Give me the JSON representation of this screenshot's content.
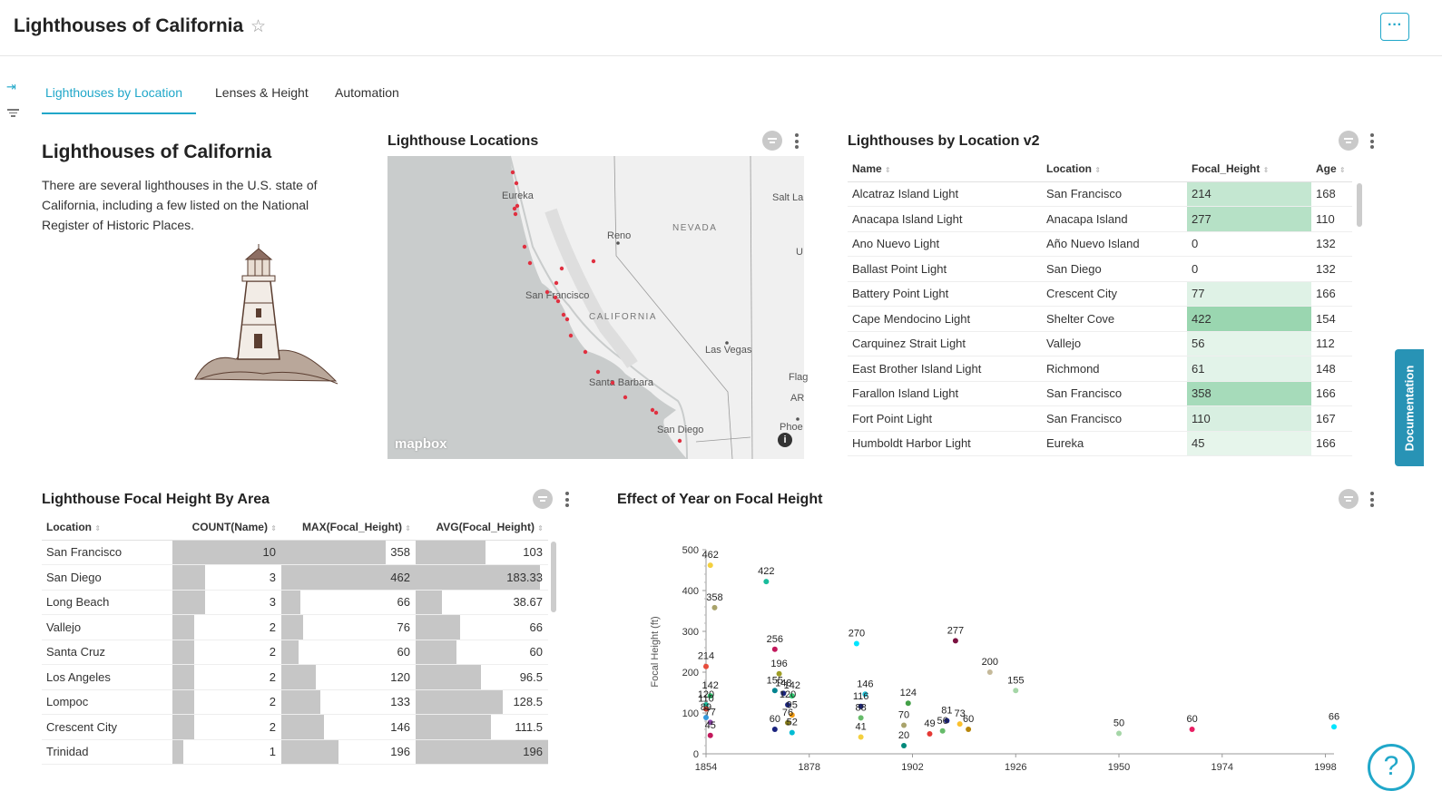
{
  "header": {
    "title": "Lighthouses of California",
    "more_label": "···"
  },
  "tabs": [
    {
      "label": "Lighthouses by Location",
      "active": true
    },
    {
      "label": "Lenses & Height",
      "active": false
    },
    {
      "label": "Automation",
      "active": false
    }
  ],
  "markdown": {
    "title": "Lighthouses of California",
    "text": "There are several lighthouses in the U.S. state of California, including a few listed on the National Register of Historic Places."
  },
  "map": {
    "title": "Lighthouse Locations",
    "labels": [
      "Eureka",
      "Reno",
      "NEVADA",
      "San Francisco",
      "CALIFORNIA",
      "Las Vegas",
      "Santa Barbara",
      "San Diego",
      "Salt La",
      "U",
      "Flag",
      "AR",
      "Phoe"
    ],
    "logo": "mapbox",
    "info": "i"
  },
  "location_table": {
    "title": "Lighthouses by Location v2",
    "columns": [
      "Name",
      "Location",
      "Focal_Height",
      "Age"
    ],
    "rows": [
      {
        "name": "Alcatraz Island Light",
        "location": "San Francisco",
        "focal_height": "214",
        "age": "168"
      },
      {
        "name": "Anacapa Island Light",
        "location": "Anacapa Island",
        "focal_height": "277",
        "age": "110"
      },
      {
        "name": "Ano Nuevo Light",
        "location": "Año Nuevo Island",
        "focal_height": "0",
        "age": "132"
      },
      {
        "name": "Ballast Point Light",
        "location": "San Diego",
        "focal_height": "0",
        "age": "132"
      },
      {
        "name": "Battery Point Light",
        "location": "Crescent City",
        "focal_height": "77",
        "age": "166"
      },
      {
        "name": "Cape Mendocino Light",
        "location": "Shelter Cove",
        "focal_height": "422",
        "age": "154"
      },
      {
        "name": "Carquinez Strait Light",
        "location": "Vallejo",
        "focal_height": "56",
        "age": "112"
      },
      {
        "name": "East Brother Island Light",
        "location": "Richmond",
        "focal_height": "61",
        "age": "148"
      },
      {
        "name": "Farallon Island Light",
        "location": "San Francisco",
        "focal_height": "358",
        "age": "166"
      },
      {
        "name": "Fort Point Light",
        "location": "San Francisco",
        "focal_height": "110",
        "age": "167"
      },
      {
        "name": "Humboldt Harbor Light",
        "location": "Eureka",
        "focal_height": "45",
        "age": "166"
      }
    ]
  },
  "area_table": {
    "title": "Lighthouse Focal Height By Area",
    "columns": [
      "Location",
      "COUNT(Name)",
      "MAX(Focal_Height)",
      "AVG(Focal_Height)"
    ],
    "rows": [
      {
        "location": "San Francisco",
        "count": "10",
        "max": "358",
        "avg": "103"
      },
      {
        "location": "San Diego",
        "count": "3",
        "max": "462",
        "avg": "183.33"
      },
      {
        "location": "Long Beach",
        "count": "3",
        "max": "66",
        "avg": "38.67"
      },
      {
        "location": "Vallejo",
        "count": "2",
        "max": "76",
        "avg": "66"
      },
      {
        "location": "Santa Cruz",
        "count": "2",
        "max": "60",
        "avg": "60"
      },
      {
        "location": "Los Angeles",
        "count": "2",
        "max": "120",
        "avg": "96.5"
      },
      {
        "location": "Lompoc",
        "count": "2",
        "max": "133",
        "avg": "128.5"
      },
      {
        "location": "Crescent City",
        "count": "2",
        "max": "146",
        "avg": "111.5"
      },
      {
        "location": "Trinidad",
        "count": "1",
        "max": "196",
        "avg": "196"
      }
    ]
  },
  "chart_data": {
    "type": "scatter",
    "title": "Effect of Year on Focal Height",
    "ylabel": "Focal Height (ft)",
    "xlabel": "",
    "xlim": [
      1854,
      2000
    ],
    "ylim": [
      0,
      500
    ],
    "xticks": [
      1854,
      1878,
      1902,
      1926,
      1950,
      1974,
      1998
    ],
    "yticks": [
      0,
      100,
      200,
      300,
      400,
      500
    ],
    "grid": false,
    "points": [
      {
        "x": 1855,
        "y": 462,
        "color": "#f4d03f"
      },
      {
        "x": 1856,
        "y": 358,
        "color": "#a9a36b"
      },
      {
        "x": 1854,
        "y": 214,
        "color": "#e74c3c"
      },
      {
        "x": 1855,
        "y": 142,
        "color": "#2ecc71"
      },
      {
        "x": 1854,
        "y": 120,
        "color": "#1abc9c"
      },
      {
        "x": 1854,
        "y": 110,
        "color": "#c0392b"
      },
      {
        "x": 1854,
        "y": 89,
        "color": "#3498db"
      },
      {
        "x": 1855,
        "y": 77,
        "color": "#8e44ad"
      },
      {
        "x": 1855,
        "y": 45,
        "color": "#c2185b"
      },
      {
        "x": 1868,
        "y": 422,
        "color": "#1abc9c"
      },
      {
        "x": 1870,
        "y": 256,
        "color": "#c2185b"
      },
      {
        "x": 1871,
        "y": 196,
        "color": "#9e9d24"
      },
      {
        "x": 1870,
        "y": 155,
        "color": "#00838f"
      },
      {
        "x": 1872,
        "y": 148,
        "color": "#1a237e"
      },
      {
        "x": 1874,
        "y": 142,
        "color": "#2ecc71"
      },
      {
        "x": 1873,
        "y": 120,
        "color": "#1a237e"
      },
      {
        "x": 1874,
        "y": 95,
        "color": "#f39c12"
      },
      {
        "x": 1873,
        "y": 76,
        "color": "#827717"
      },
      {
        "x": 1870,
        "y": 60,
        "color": "#1a237e"
      },
      {
        "x": 1874,
        "y": 52,
        "color": "#00bcd4"
      },
      {
        "x": 1889,
        "y": 270,
        "color": "#00e5ff"
      },
      {
        "x": 1891,
        "y": 146,
        "color": "#26c6da"
      },
      {
        "x": 1890,
        "y": 116,
        "color": "#1a237e"
      },
      {
        "x": 1890,
        "y": 88,
        "color": "#66bb6a"
      },
      {
        "x": 1890,
        "y": 41,
        "color": "#f4d03f"
      },
      {
        "x": 1901,
        "y": 124,
        "color": "#43a047"
      },
      {
        "x": 1900,
        "y": 70,
        "color": "#a9a36b"
      },
      {
        "x": 1900,
        "y": 20,
        "color": "#00897b"
      },
      {
        "x": 1906,
        "y": 49,
        "color": "#e53935"
      },
      {
        "x": 1910,
        "y": 81,
        "color": "#1a237e"
      },
      {
        "x": 1909,
        "y": 56,
        "color": "#66bb6a"
      },
      {
        "x": 1913,
        "y": 73,
        "color": "#fbc02d"
      },
      {
        "x": 1915,
        "y": 60,
        "color": "#b8860b"
      },
      {
        "x": 1912,
        "y": 277,
        "color": "#7b1040"
      },
      {
        "x": 1920,
        "y": 200,
        "color": "#c5b99a"
      },
      {
        "x": 1926,
        "y": 155,
        "color": "#a5d6a7"
      },
      {
        "x": 1950,
        "y": 50,
        "color": "#a5d6a7"
      },
      {
        "x": 1967,
        "y": 60,
        "color": "#e91e63"
      },
      {
        "x": 2000,
        "y": 66,
        "color": "#00e5ff"
      }
    ]
  },
  "sidebar": {
    "collapse_icon": "⇥",
    "documentation": "Documentation",
    "help": "?"
  }
}
